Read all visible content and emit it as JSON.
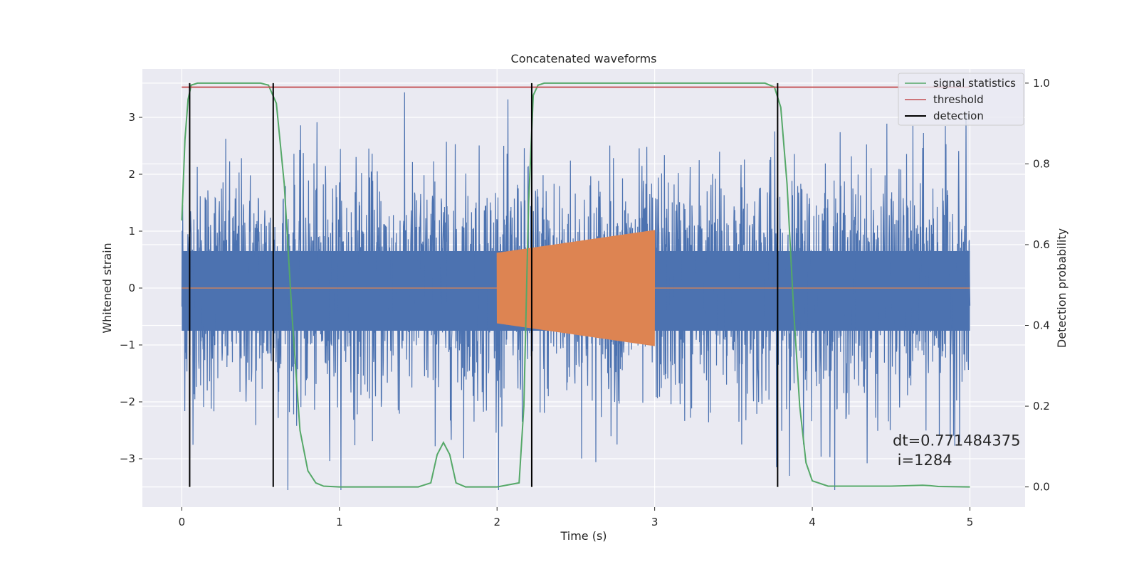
{
  "chart_data": {
    "type": "line",
    "title": "Concatenated waveforms",
    "xlabel": "Time (s)",
    "ylabel": "Whitened strain",
    "y2label": "Detection probability",
    "xlim": [
      -0.25,
      5.35
    ],
    "ylim": [
      -3.85,
      3.85
    ],
    "y2lim": [
      -0.05,
      1.035
    ],
    "xticks": [
      0,
      1,
      2,
      3,
      4,
      5
    ],
    "yticks": [
      -3,
      -2,
      -1,
      0,
      1,
      2,
      3
    ],
    "y2ticks": [
      0.0,
      0.2,
      0.4,
      0.6,
      0.8,
      1.0
    ],
    "xtick_labels": [
      "0",
      "1",
      "2",
      "3",
      "4",
      "5"
    ],
    "ytick_labels": [
      "−3",
      "−2",
      "−1",
      "0",
      "1",
      "2",
      "3"
    ],
    "y2tick_labels": [
      "0.0",
      "0.2",
      "0.4",
      "0.6",
      "0.8",
      "1.0"
    ],
    "grid": true,
    "legend_position": "top-right",
    "colors": {
      "background": "#eaeaf2",
      "grid": "#ffffff",
      "noise": "#4c72b0",
      "injected": "#dd8452",
      "signal_statistics": "#55a868",
      "threshold": "#c44e52",
      "detection": "#000000"
    },
    "series": [
      {
        "name": "signal statistics",
        "axis": "right",
        "x": [
          0.0,
          0.02,
          0.04,
          0.06,
          0.1,
          0.2,
          0.5,
          0.55,
          0.6,
          0.65,
          0.7,
          0.75,
          0.8,
          0.85,
          0.9,
          1.0,
          1.5,
          1.58,
          1.62,
          1.66,
          1.7,
          1.74,
          1.8,
          2.0,
          2.14,
          2.17,
          2.2,
          2.23,
          2.26,
          2.3,
          2.5,
          3.7,
          3.76,
          3.8,
          3.84,
          3.88,
          3.92,
          3.96,
          4.0,
          4.1,
          4.5,
          4.7,
          4.75,
          4.8,
          5.0
        ],
        "y": [
          0.66,
          0.86,
          0.96,
          0.995,
          1.0,
          1.0,
          1.0,
          0.995,
          0.95,
          0.75,
          0.42,
          0.14,
          0.04,
          0.01,
          0.002,
          0.0,
          0.0,
          0.01,
          0.08,
          0.11,
          0.08,
          0.01,
          0.0,
          0.0,
          0.01,
          0.2,
          0.7,
          0.97,
          0.995,
          1.0,
          1.0,
          1.0,
          0.99,
          0.94,
          0.75,
          0.45,
          0.2,
          0.06,
          0.015,
          0.002,
          0.002,
          0.004,
          0.003,
          0.001,
          0.0
        ]
      },
      {
        "name": "threshold",
        "axis": "right",
        "x": [
          0.0,
          5.0
        ],
        "y": [
          0.99,
          0.99
        ]
      },
      {
        "name": "detection",
        "axis": "right",
        "x": [
          0.05,
          0.58,
          2.22,
          3.78
        ],
        "y_range": [
          0.0,
          1.0
        ]
      }
    ],
    "background_series": [
      {
        "id": "whitened-noise",
        "axis": "left",
        "x_range": [
          0.0,
          5.0
        ],
        "band": [
          -0.75,
          0.65
        ],
        "extremes": [
          -3.55,
          3.45
        ]
      },
      {
        "id": "injected-waveform",
        "axis": "left",
        "x_range": [
          2.0,
          3.0
        ],
        "amplitude_start": 0.62,
        "amplitude_end": 1.02
      }
    ],
    "annotations": [
      {
        "text": "dt=0.771484375",
        "x": 4.51,
        "y": -2.77
      },
      {
        "text": " i=1284",
        "x": 4.51,
        "y": -3.11
      }
    ]
  }
}
